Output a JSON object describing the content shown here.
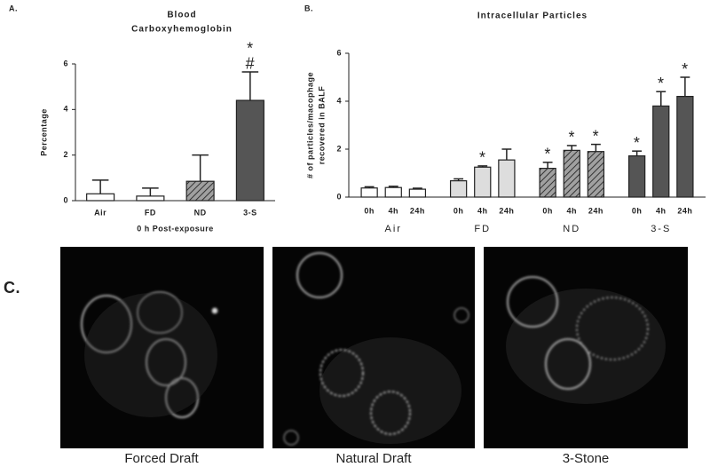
{
  "panels": {
    "a": "A.",
    "b": "B.",
    "c": "C."
  },
  "chart_data": [
    {
      "type": "bar",
      "title": [
        "Blood",
        "Carboxyhemoglobin"
      ],
      "y_label": "Percentage",
      "x_label": "0 h Post-exposure",
      "categories": [
        "Air",
        "FD",
        "ND",
        "3-S"
      ],
      "values": [
        0.3,
        0.2,
        0.85,
        4.4
      ],
      "errors": [
        0.6,
        0.35,
        1.15,
        1.25
      ],
      "colors": [
        "#ffffff",
        "#ffffff",
        "#a0a0a0",
        "#555555"
      ],
      "hatch": [
        false,
        false,
        true,
        false
      ],
      "marks": [
        null,
        null,
        null,
        [
          "*",
          "#"
        ]
      ],
      "ylim": [
        0,
        6
      ],
      "yticks": [
        0,
        2,
        4,
        6
      ],
      "grid": false
    },
    {
      "type": "grouped_bar",
      "title": "Intracellular Particles",
      "y_label": [
        "# of particles/macophage",
        "recovered in BALF"
      ],
      "categories": [
        "0h",
        "4h",
        "24h"
      ],
      "series": [
        {
          "name": "Air",
          "color": "#ffffff",
          "hatch": false,
          "values": [
            0.38,
            0.4,
            0.33
          ],
          "errors": [
            0.05,
            0.05,
            0.04
          ],
          "marks": [
            null,
            null,
            null
          ]
        },
        {
          "name": "FD",
          "color": "#dddddd",
          "hatch": false,
          "values": [
            0.68,
            1.25,
            1.55
          ],
          "errors": [
            0.08,
            0.05,
            0.45
          ],
          "marks": [
            null,
            "*",
            null
          ]
        },
        {
          "name": "ND",
          "color": "#a0a0a0",
          "hatch": true,
          "values": [
            1.2,
            1.95,
            1.9
          ],
          "errors": [
            0.25,
            0.2,
            0.3
          ],
          "marks": [
            "*",
            "*",
            "*"
          ]
        },
        {
          "name": "3-S",
          "color": "#555555",
          "hatch": false,
          "values": [
            1.72,
            3.8,
            4.2
          ],
          "errors": [
            0.2,
            0.6,
            0.8
          ],
          "marks": [
            "*",
            "*",
            "*"
          ]
        }
      ],
      "ylim": [
        0,
        6
      ],
      "yticks": [
        0,
        2,
        4,
        6
      ],
      "grid": false
    }
  ],
  "images": [
    {
      "caption": "Forced Draft"
    },
    {
      "caption": "Natural Draft"
    },
    {
      "caption": "3-Stone"
    }
  ]
}
